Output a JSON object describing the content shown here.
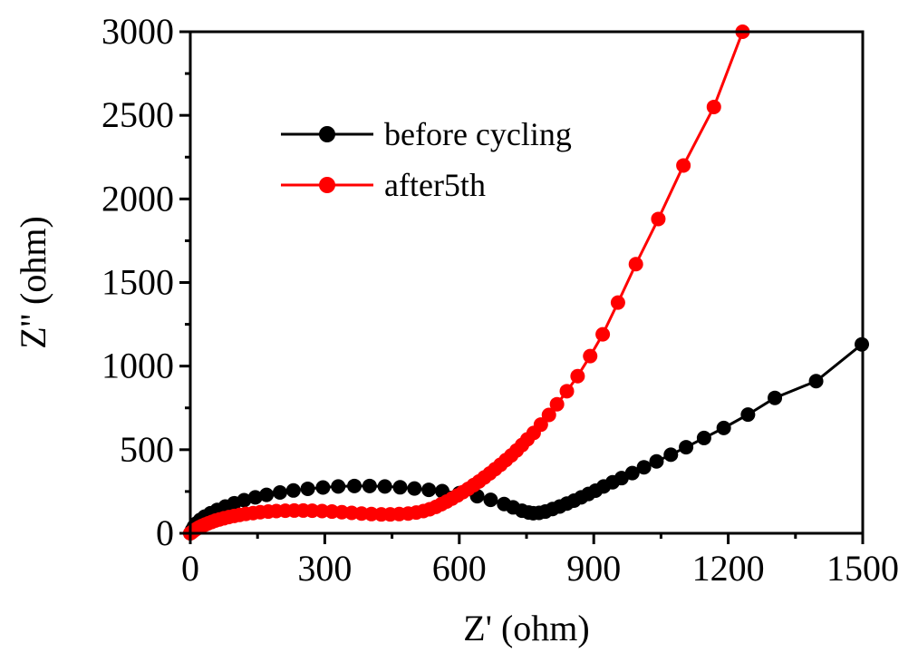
{
  "chart_data": {
    "type": "scatter",
    "title": "",
    "xlabel": "Z' (ohm)",
    "ylabel": "Z'' (ohm)",
    "xlim": [
      0,
      1500
    ],
    "ylim": [
      0,
      3000
    ],
    "x_ticks": [
      0,
      300,
      600,
      900,
      1200,
      1500
    ],
    "y_ticks": [
      0,
      500,
      1000,
      1500,
      2000,
      2500,
      3000
    ],
    "x_tick_labels": [
      "0",
      "300",
      "600",
      "900",
      "1200",
      "1500"
    ],
    "y_tick_labels": [
      "0",
      "500",
      "1000",
      "1500",
      "2000",
      "2500",
      "3000"
    ],
    "grid": false,
    "legend_position": "top-left",
    "series": [
      {
        "name": "before cycling",
        "color": "#000000",
        "x": [
          0,
          4,
          8,
          14,
          22,
          32,
          45,
          60,
          78,
          98,
          120,
          145,
          170,
          200,
          230,
          262,
          296,
          330,
          366,
          400,
          434,
          468,
          500,
          532,
          562,
          600,
          640,
          670,
          700,
          720,
          740,
          755,
          765,
          778,
          792,
          808,
          824,
          840,
          856,
          872,
          888,
          904,
          922,
          942,
          962,
          986,
          1012,
          1040,
          1072,
          1106,
          1146,
          1190,
          1244,
          1304,
          1396,
          1498
        ],
        "y": [
          0,
          20,
          40,
          60,
          80,
          100,
          120,
          140,
          160,
          180,
          198,
          215,
          230,
          244,
          256,
          266,
          274,
          280,
          283,
          283,
          280,
          275,
          268,
          260,
          252,
          240,
          222,
          200,
          175,
          155,
          135,
          124,
          120,
          122,
          130,
          145,
          160,
          178,
          195,
          215,
          235,
          255,
          280,
          305,
          330,
          360,
          395,
          430,
          470,
          515,
          570,
          630,
          710,
          810,
          910,
          1130
        ]
      },
      {
        "name": "after5th",
        "color": "#ff0000",
        "x": [
          0,
          3,
          6,
          10,
          15,
          20,
          26,
          33,
          40,
          48,
          56,
          65,
          75,
          86,
          98,
          110,
          124,
          140,
          156,
          174,
          192,
          212,
          232,
          252,
          272,
          294,
          316,
          338,
          360,
          382,
          404,
          426,
          446,
          466,
          486,
          504,
          520,
          534,
          548,
          560,
          572,
          584,
          596,
          608,
          620,
          632,
          644,
          656,
          668,
          680,
          692,
          704,
          716,
          728,
          740,
          752,
          766,
          782,
          800,
          818,
          840,
          864,
          892,
          920,
          954,
          994,
          1044,
          1100,
          1168,
          1232
        ],
        "y": [
          0,
          5,
          12,
          20,
          28,
          36,
          44,
          52,
          60,
          68,
          76,
          83,
          90,
          97,
          104,
          110,
          116,
          121,
          126,
          130,
          133,
          135,
          136,
          136,
          135,
          133,
          130,
          126,
          122,
          118,
          115,
          113,
          113,
          115,
          118,
          124,
          133,
          144,
          158,
          174,
          190,
          208,
          226,
          246,
          266,
          288,
          310,
          334,
          358,
          384,
          410,
          438,
          466,
          496,
          528,
          562,
          600,
          650,
          708,
          772,
          850,
          940,
          1060,
          1190,
          1380,
          1610,
          1880,
          2200,
          2550,
          3000
        ]
      }
    ]
  }
}
